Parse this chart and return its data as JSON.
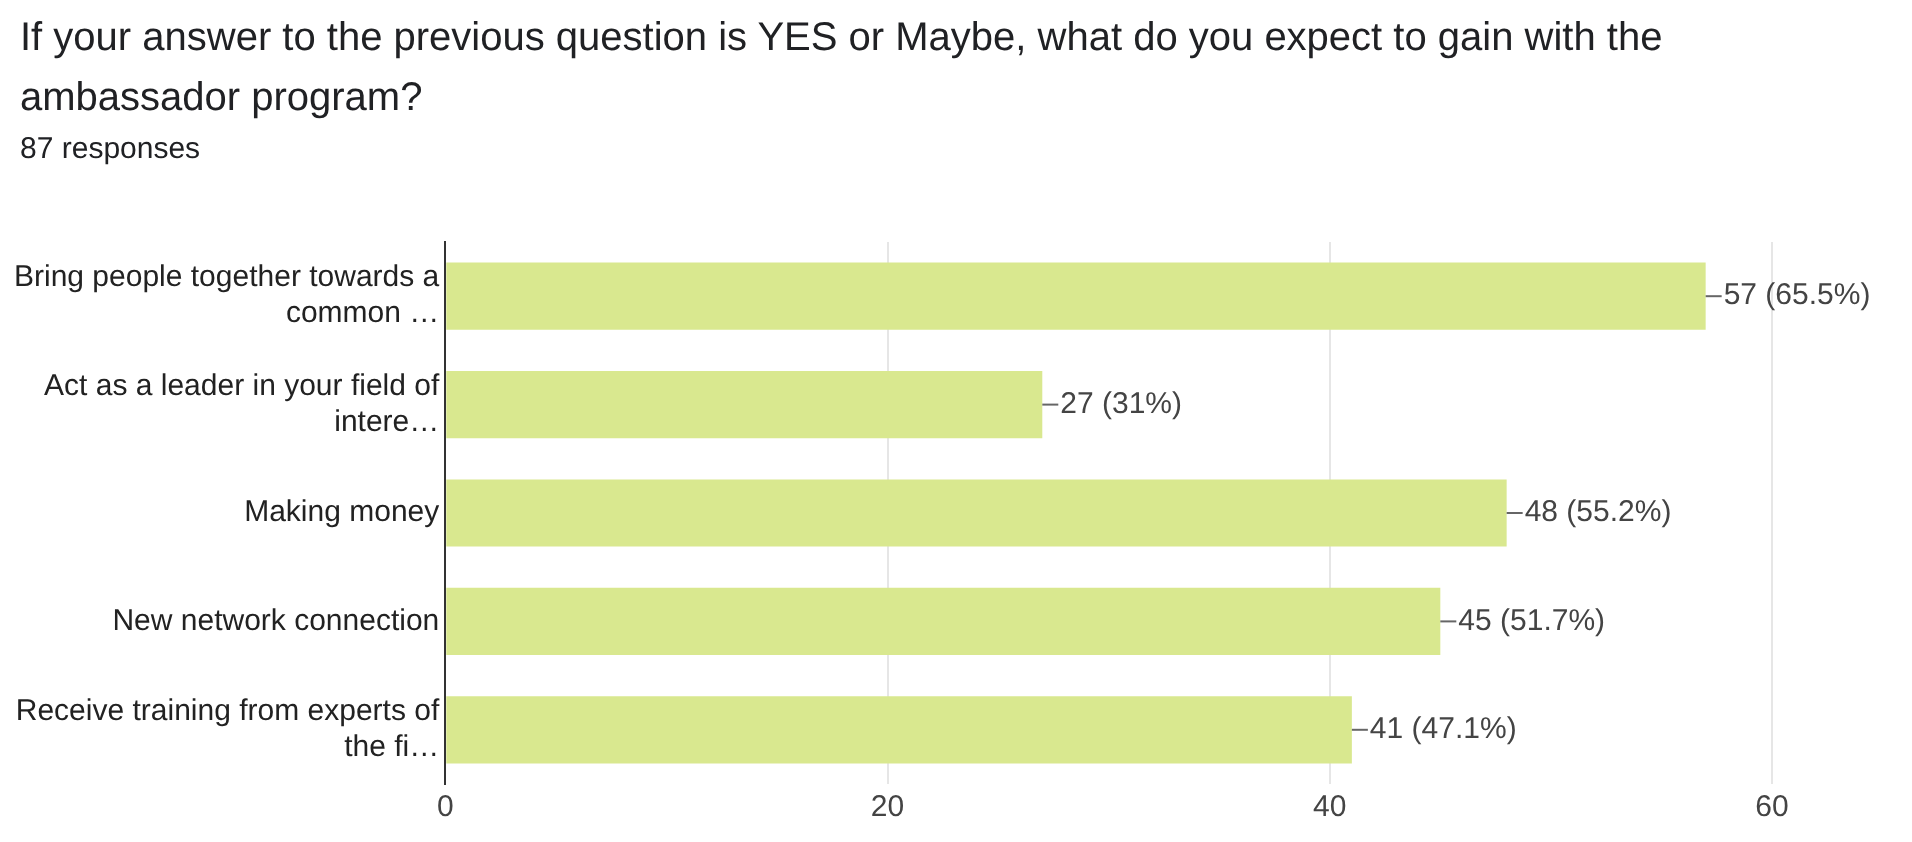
{
  "chart_data": {
    "type": "bar",
    "orientation": "horizontal",
    "title": "If your answer to the previous question is YES or Maybe, what do you expect to gain with the ambassador program?",
    "subtitle": "87 responses",
    "categories": [
      "Bring people together towards a common …",
      "Act as a leader in your field of intere…",
      "Making money",
      "New network connection",
      "Receive training from experts of the fi…"
    ],
    "values": [
      57,
      27,
      48,
      45,
      41
    ],
    "value_labels": [
      "57 (65.5%)",
      "27 (31%)",
      "48 (55.2%)",
      "45 (51.7%)",
      "41 (47.1%)"
    ],
    "color": "#d9e88f",
    "xlim": [
      0,
      60
    ],
    "xticks": [
      0,
      20,
      40,
      60
    ],
    "grid": "x",
    "legend": false
  }
}
